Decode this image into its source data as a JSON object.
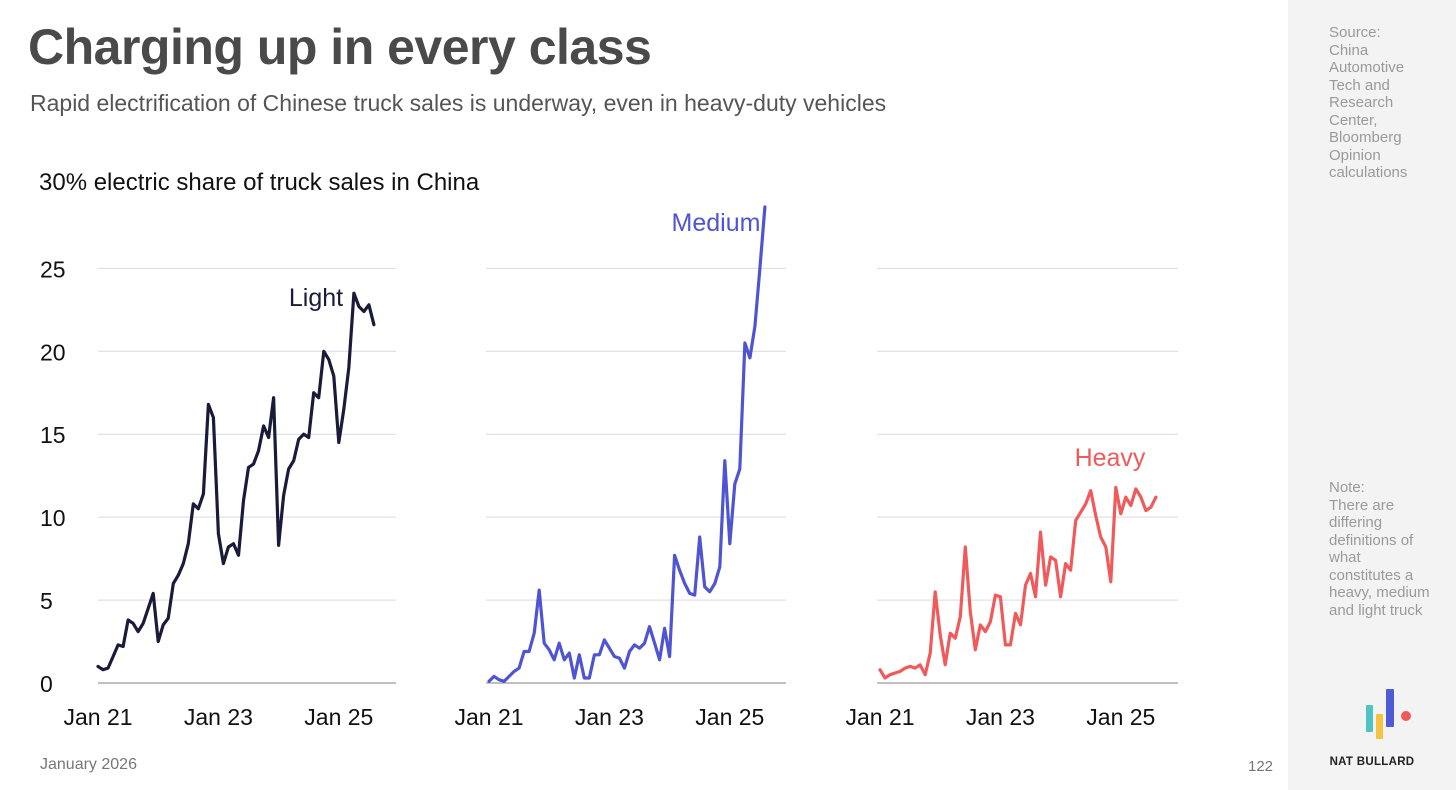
{
  "title": "Charging up in every class",
  "subtitle": "Rapid electrification of Chinese truck sales is underway, even in heavy-duty vehicles",
  "sidebar": {
    "source": "Source:\nChina\nAutomotive\nTech and\nResearch\nCenter,\nBloomberg\nOpinion\ncalculations",
    "note": "Note:\nThere are\ndiffering\ndefinitions of\nwhat\nconstitutes a\nheavy, medium\nand light truck",
    "brand": "NAT BULLARD",
    "logo_colors": [
      "#4ec5c1",
      "#f5c242",
      "#4f5bd5",
      "#f05a5a"
    ]
  },
  "footer": {
    "date": "January 2026",
    "page": "122"
  },
  "chart_data": {
    "type": "line",
    "title": "30% electric share of truck sales in China",
    "ylabel": "electric share of truck sales in China",
    "ylim": [
      0,
      30
    ],
    "yticks": [
      0,
      5,
      10,
      15,
      20,
      25
    ],
    "xticks": [
      "Jan 21",
      "Jan 23",
      "Jan 25"
    ],
    "x_start": "Jan 21",
    "x_unit": "months since Jan 2021",
    "xlim": [
      0,
      59
    ],
    "grid": true,
    "series": [
      {
        "name": "Light",
        "color": "#1c1a3a",
        "values": [
          1.0,
          0.8,
          0.9,
          1.6,
          2.3,
          2.2,
          3.8,
          3.6,
          3.1,
          3.6,
          4.5,
          5.4,
          2.5,
          3.5,
          3.9,
          6.0,
          6.5,
          7.2,
          8.4,
          10.8,
          10.5,
          11.4,
          16.8,
          16.0,
          9.0,
          7.2,
          8.2,
          8.4,
          7.7,
          11.0,
          13.0,
          13.2,
          14.0,
          15.5,
          14.8,
          17.2,
          8.3,
          11.3,
          12.9,
          13.4,
          14.7,
          15.0,
          14.8,
          17.5,
          17.2,
          20.0,
          19.5,
          18.5,
          14.5,
          16.5,
          19.0,
          23.5,
          22.7,
          22.4,
          22.8,
          21.6
        ]
      },
      {
        "name": "Medium",
        "color": "#4f55d2",
        "values": [
          0.1,
          0.4,
          0.2,
          0.1,
          0.4,
          0.7,
          0.9,
          1.9,
          1.9,
          3.0,
          5.6,
          2.4,
          2.0,
          1.4,
          2.4,
          1.4,
          1.8,
          0.3,
          1.7,
          0.3,
          0.3,
          1.7,
          1.7,
          2.6,
          2.1,
          1.6,
          1.5,
          0.9,
          1.9,
          2.3,
          2.1,
          2.4,
          3.4,
          2.4,
          1.4,
          3.3,
          1.6,
          7.7,
          6.8,
          6.0,
          5.4,
          5.3,
          8.8,
          5.8,
          5.5,
          6.0,
          7.0,
          13.4,
          8.4,
          12.0,
          12.9,
          20.5,
          19.6,
          21.5,
          25.0,
          28.7
        ]
      },
      {
        "name": "Heavy",
        "color": "#f05a5a",
        "values": [
          0.8,
          0.3,
          0.5,
          0.6,
          0.7,
          0.9,
          1.0,
          0.9,
          1.1,
          0.5,
          1.8,
          5.5,
          2.9,
          1.1,
          3.0,
          2.7,
          4.0,
          8.2,
          4.3,
          2.0,
          3.5,
          3.1,
          3.7,
          5.3,
          5.2,
          2.3,
          2.3,
          4.2,
          3.5,
          5.9,
          6.6,
          5.2,
          9.1,
          5.9,
          7.6,
          7.4,
          5.2,
          7.2,
          6.8,
          9.8,
          10.3,
          10.8,
          11.6,
          10.1,
          8.8,
          8.2,
          6.1,
          11.8,
          10.2,
          11.2,
          10.7,
          11.7,
          11.2,
          10.4,
          10.6,
          11.2
        ]
      }
    ]
  }
}
